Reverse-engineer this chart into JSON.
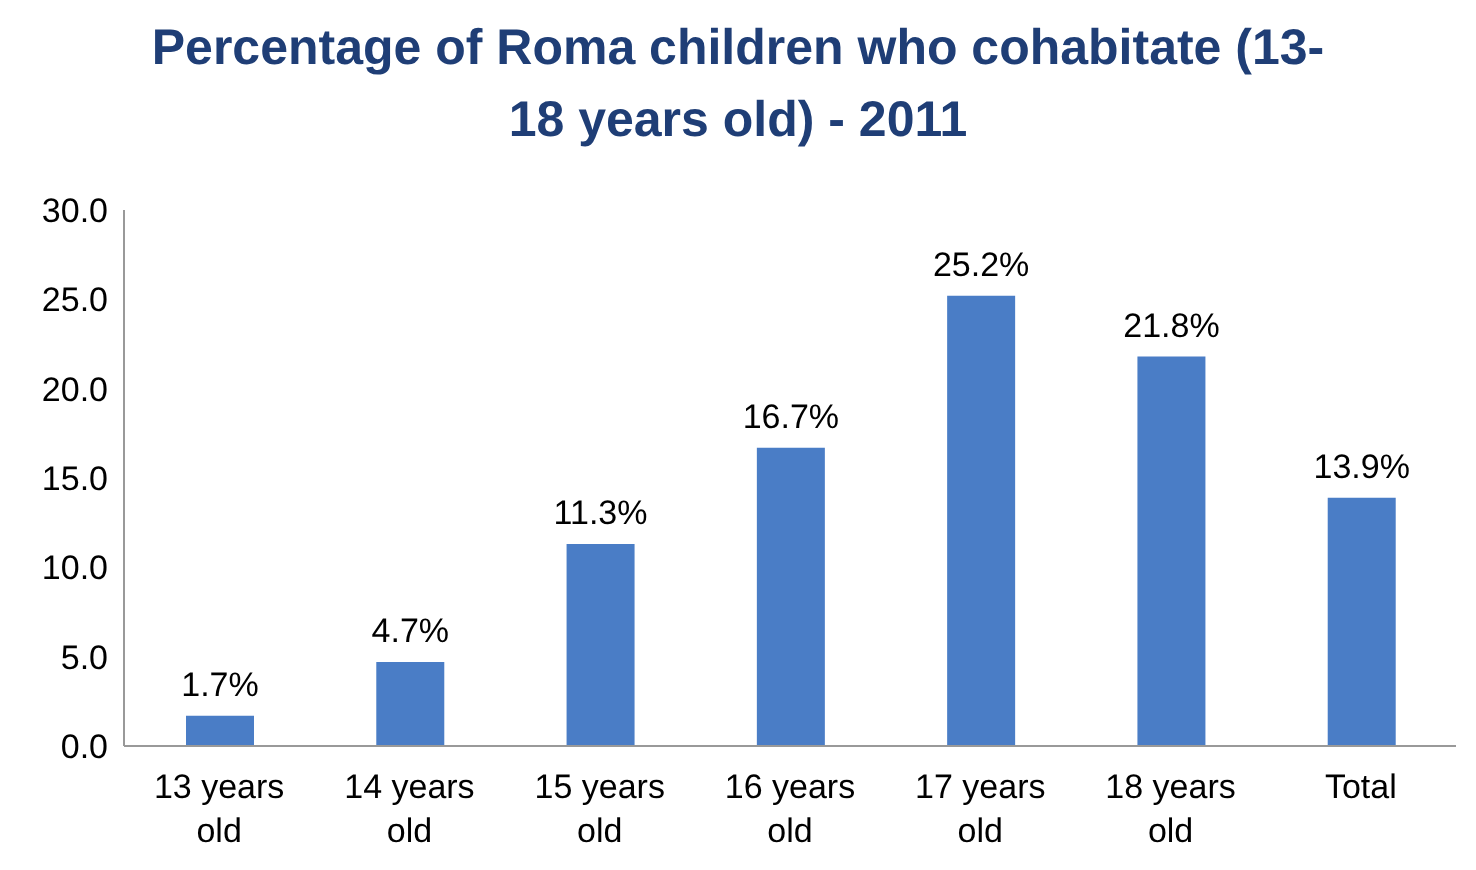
{
  "chart_data": {
    "type": "bar",
    "title": "Percentage of Roma children who cohabitate (13-18 years old) - 2011",
    "categories": [
      "13 years old",
      "14 years old",
      "15 years old",
      "16 years old",
      "17 years old",
      "18 years old",
      "Total"
    ],
    "values": [
      1.7,
      4.7,
      11.3,
      16.7,
      25.2,
      21.8,
      13.9
    ],
    "value_labels": [
      "1.7%",
      "4.7%",
      "11.3%",
      "16.7%",
      "25.2%",
      "21.8%",
      "13.9%"
    ],
    "color": "#4a7dc6",
    "ylim": [
      0,
      30
    ],
    "yticks": [
      {
        "value": 0,
        "label": "0.0"
      },
      {
        "value": 5,
        "label": "5.0"
      },
      {
        "value": 10,
        "label": "10.0"
      },
      {
        "value": 15,
        "label": "15.0"
      },
      {
        "value": 20,
        "label": "20.0"
      },
      {
        "value": 25,
        "label": "25.0"
      },
      {
        "value": 30,
        "label": "30.0"
      }
    ],
    "grid": false,
    "legend": false
  }
}
